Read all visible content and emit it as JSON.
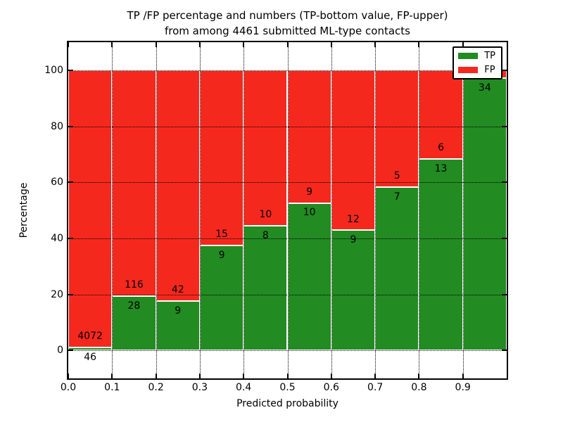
{
  "title": {
    "line1": "TP /FP percentage and numbers (TP-bottom value, FP-upper)",
    "line2": "from among 4461 submitted ML-type contacts"
  },
  "axes": {
    "xlabel": "Predicted probability",
    "ylabel": "Percentage",
    "x_ticks": [
      "0.0",
      "0.1",
      "0.2",
      "0.3",
      "0.4",
      "0.5",
      "0.6",
      "0.7",
      "0.8",
      "0.9"
    ],
    "y_ticks": [
      "0",
      "20",
      "40",
      "60",
      "80",
      "100"
    ],
    "y_tick_values": [
      0,
      20,
      40,
      60,
      80,
      100
    ],
    "ylim": [
      -10,
      110
    ],
    "xlim": [
      0.0,
      1.0
    ],
    "grid": "dotted"
  },
  "legend": {
    "position": "upper right",
    "items": [
      {
        "label": "TP",
        "color": "#228b22"
      },
      {
        "label": "FP",
        "color": "#f5281e"
      }
    ]
  },
  "chart_data": {
    "type": "bar",
    "stacked": true,
    "title": "TP /FP percentage and numbers (TP-bottom value, FP-upper) from among 4461 submitted ML-type contacts",
    "xlabel": "Predicted probability",
    "ylabel": "Percentage",
    "total_contacts": 4461,
    "categories": [
      "0.0-0.1",
      "0.1-0.2",
      "0.2-0.3",
      "0.3-0.4",
      "0.4-0.5",
      "0.5-0.6",
      "0.6-0.7",
      "0.7-0.8",
      "0.8-0.9",
      "0.9-1.0"
    ],
    "series": [
      {
        "name": "TP",
        "color": "#228b22",
        "counts": [
          46,
          28,
          9,
          9,
          8,
          10,
          9,
          7,
          13,
          34
        ]
      },
      {
        "name": "FP",
        "color": "#f5281e",
        "counts": [
          4072,
          116,
          42,
          15,
          10,
          9,
          12,
          5,
          6,
          1
        ]
      }
    ],
    "tp_percent": [
      1.12,
      19.44,
      17.65,
      37.5,
      44.44,
      52.63,
      42.86,
      58.33,
      68.42,
      97.14
    ],
    "bar_text_labels": {
      "tp": [
        "46",
        "28",
        "9",
        "9",
        "8",
        "10",
        "9",
        "7",
        "13",
        "34"
      ],
      "fp": [
        "4072",
        "116",
        "42",
        "15",
        "10",
        "9",
        "12",
        "5",
        "6",
        null
      ]
    }
  }
}
